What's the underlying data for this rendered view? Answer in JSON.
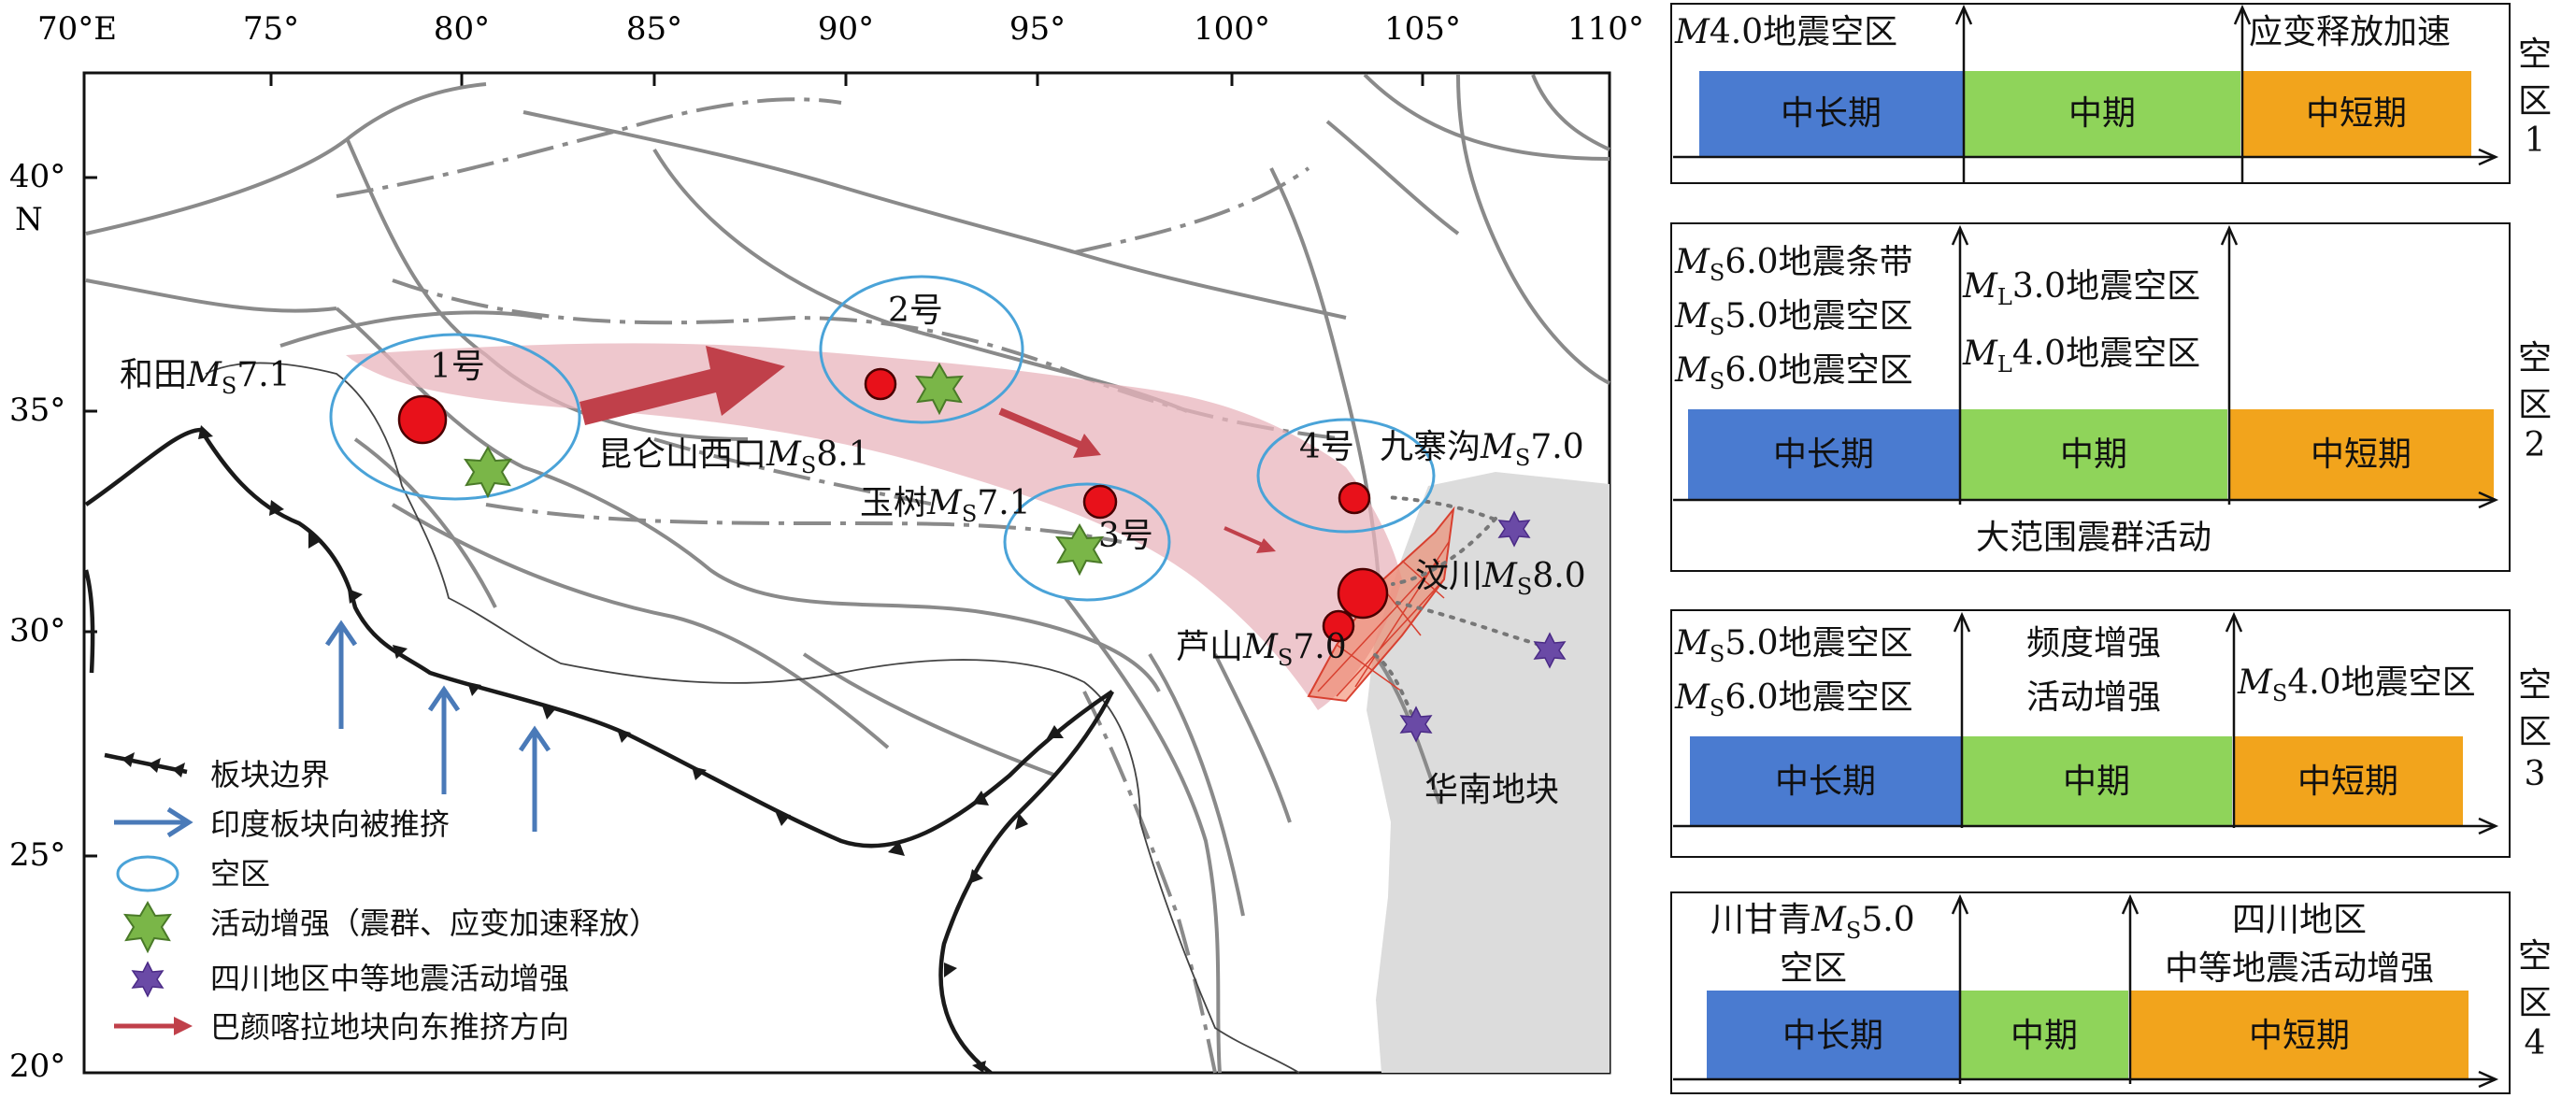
{
  "map": {
    "lon_ticks": [
      "70°E",
      "75°",
      "80°",
      "85°",
      "90°",
      "95°",
      "100°",
      "105°",
      "110°"
    ],
    "lat_ticks": [
      "40°",
      "35°",
      "30°",
      "25°",
      "20°"
    ],
    "lat_unit": "N",
    "gap_labels": [
      "1号",
      "2号",
      "3号",
      "4号"
    ],
    "earthquakes": {
      "hetian": {
        "name": "和田",
        "mag": "7.1"
      },
      "kunlun": {
        "name": "昆仑山西口",
        "mag": "8.1"
      },
      "yushu": {
        "name": "玉树",
        "mag": "7.1"
      },
      "jiuzhaigou": {
        "name": "九寨沟",
        "mag": "7.0"
      },
      "wenchuan": {
        "name": "汶川",
        "mag": "8.0"
      },
      "lushan": {
        "name": "芦山",
        "mag": "7.0"
      }
    },
    "ms_symbol": "M",
    "ms_sub": "S",
    "region_label": "华南地块",
    "legend": {
      "plate_boundary": "板块边界",
      "indian_push": "印度板块向被推挤",
      "gap": "空区",
      "activity": "活动增强（震群、应变加速释放）",
      "sichuan": "四川地区中等地震活动增强",
      "bayan": "巴颜喀拉地块向东推挤方向"
    },
    "colors": {
      "plate": "#1a1a1a",
      "gap_ellipse": "#4aa3d8",
      "activity_star": "#7ab648",
      "sichuan_star": "#6a4aa6",
      "quake": "#e8111a",
      "push_arrow": "#4a7ab8",
      "bayan_arrow": "#c0404a",
      "south_china": "#dcdcdc",
      "belt": "#e8b4bc",
      "fault": "#8a8a8a"
    }
  },
  "panels": [
    {
      "side_label": [
        "空",
        "区",
        "1"
      ],
      "above": {
        "left": [
          "M4.0地震空区"
        ],
        "right": [
          "应变释放加速"
        ]
      },
      "bars": {
        "long": "中长期",
        "mid": "中期",
        "short": "中短期"
      },
      "below": ""
    },
    {
      "side_label": [
        "空",
        "区",
        "2"
      ],
      "above": {
        "left": [
          "MS6.0地震条带",
          "MS5.0地震空区",
          "MS6.0地震空区"
        ],
        "mid": [
          "ML3.0地震空区",
          "ML4.0地震空区"
        ]
      },
      "bars": {
        "long": "中长期",
        "mid": "中期",
        "short": "中短期"
      },
      "below": "大范围震群活动"
    },
    {
      "side_label": [
        "空",
        "区",
        "3"
      ],
      "above": {
        "left": [
          "MS5.0地震空区",
          "MS6.0地震空区"
        ],
        "mid": [
          "频度增强",
          "活动增强"
        ],
        "right": [
          "MS4.0地震空区"
        ]
      },
      "bars": {
        "long": "中长期",
        "mid": "中期",
        "short": "中短期"
      },
      "below": ""
    },
    {
      "side_label": [
        "空",
        "区",
        "4"
      ],
      "above": {
        "left": [
          "川甘青MS5.0",
          "空区"
        ],
        "right": [
          "四川地区",
          "中等地震活动增强"
        ]
      },
      "bars": {
        "long": "中长期",
        "mid": "中期",
        "short": "中短期"
      },
      "below": ""
    }
  ],
  "panel_colors": {
    "long": "#4a7bd0",
    "mid": "#8fd45a",
    "short": "#f2a41c"
  }
}
